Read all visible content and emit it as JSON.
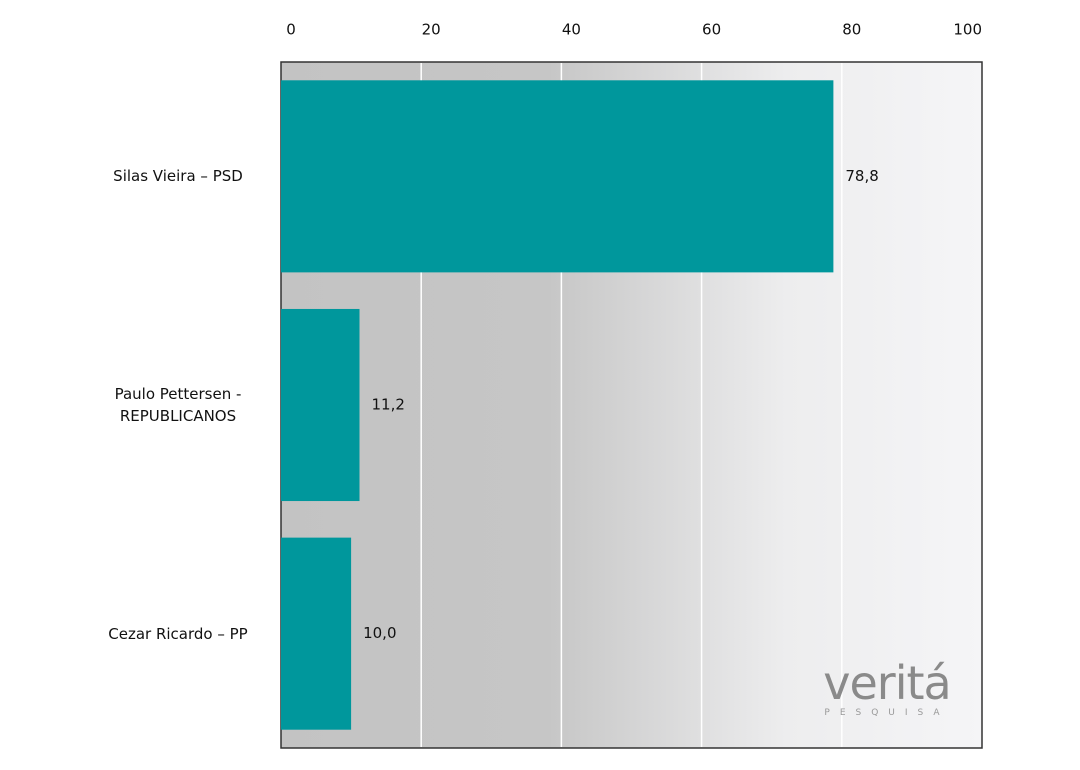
{
  "chart_data": {
    "type": "bar",
    "orientation": "horizontal",
    "categories": [
      "Silas Vieira – PSD",
      "Paulo Pettersen - REPUBLICANOS",
      "Cezar Ricardo – PP"
    ],
    "values": [
      78.8,
      11.2,
      10.0
    ],
    "value_labels": [
      "78,8",
      "11,2",
      "10,0"
    ],
    "color": "#00979c",
    "xlim": [
      0,
      100
    ],
    "xticks": [
      0,
      20,
      40,
      60,
      80,
      100
    ],
    "grid": true
  },
  "logo": {
    "name": "veritá",
    "tagline": "PESQUISA"
  }
}
